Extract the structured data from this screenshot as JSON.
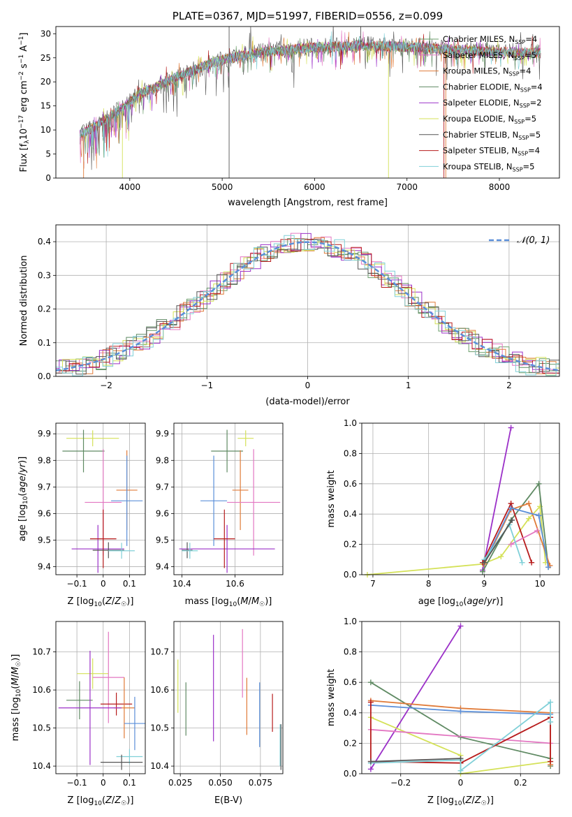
{
  "colors": {
    "chabrier_miles": "#6c9f6c",
    "salpeter_miles": "#e377c2",
    "kroupa_miles": "#e07b39",
    "chabrier_elodie": "#5f8a63",
    "salpeter_elodie": "#9b30c8",
    "kroupa_elodie": "#d4e157",
    "chabrier_stelib": "#555555",
    "salpeter_stelib": "#b71c1c",
    "kroupa_stelib": "#80d0d8",
    "blue_model": "#5b8fd9"
  },
  "chart_data": [
    {
      "id": "spectrum",
      "type": "line",
      "title": "PLATE=0367, MJD=51997, FIBERID=0556, z=0.099",
      "xlabel": "wavelength [Angstrom, rest frame]",
      "ylabel": "Flux [f_λ 10^-17 erg cm^-2 s^-1 A^-1]",
      "xlim": [
        3200,
        8650
      ],
      "ylim": [
        0,
        31.5
      ],
      "xticks": [
        4000,
        5000,
        6000,
        7000,
        8000
      ],
      "yticks": [
        0,
        5,
        10,
        15,
        20,
        25,
        30
      ],
      "grid": false,
      "legend_position": "top-right",
      "legend": [
        {
          "label": "Chabrier MILES, N",
          "sub": "SSP",
          "suffix": "=4",
          "color_key": "chabrier_miles"
        },
        {
          "label": "Salpeter MILES, N",
          "sub": "SSP",
          "suffix": "=5",
          "color_key": "salpeter_miles"
        },
        {
          "label": "Kroupa MILES, N",
          "sub": "SSP",
          "suffix": "=4",
          "color_key": "kroupa_miles"
        },
        {
          "label": "Chabrier ELODIE, N",
          "sub": "SSP",
          "suffix": "=4",
          "color_key": "chabrier_elodie"
        },
        {
          "label": "Salpeter ELODIE, N",
          "sub": "SSP",
          "suffix": "=2",
          "color_key": "salpeter_elodie"
        },
        {
          "label": "Kroupa ELODIE, N",
          "sub": "SSP",
          "suffix": "=5",
          "color_key": "kroupa_elodie"
        },
        {
          "label": "Chabrier STELIB, N",
          "sub": "SSP",
          "suffix": "=5",
          "color_key": "chabrier_stelib"
        },
        {
          "label": "Salpeter STELIB, N",
          "sub": "SSP",
          "suffix": "=4",
          "color_key": "salpeter_stelib"
        },
        {
          "label": "Kroupa STELIB, N",
          "sub": "SSP",
          "suffix": "=5",
          "color_key": "kroupa_stelib"
        }
      ],
      "continuum": [
        [
          3460,
          9
        ],
        [
          3600,
          10.5
        ],
        [
          3800,
          13
        ],
        [
          3950,
          15
        ],
        [
          4100,
          17.5
        ],
        [
          4300,
          19
        ],
        [
          4500,
          21
        ],
        [
          4700,
          22.5
        ],
        [
          4900,
          24
        ],
        [
          5100,
          25
        ],
        [
          5300,
          25.8
        ],
        [
          5500,
          26.3
        ],
        [
          5700,
          26.6
        ],
        [
          5900,
          27.1
        ],
        [
          6100,
          27.3
        ],
        [
          6300,
          27.3
        ],
        [
          6500,
          27.5
        ],
        [
          6700,
          27.5
        ],
        [
          6900,
          27.3
        ],
        [
          7100,
          27.2
        ],
        [
          7300,
          26.9
        ],
        [
          7500,
          26.7
        ],
        [
          7700,
          26.5
        ],
        [
          7900,
          26.3
        ],
        [
          8100,
          26.2
        ],
        [
          8300,
          26
        ],
        [
          8450,
          25.9
        ]
      ]
    },
    {
      "id": "residuals",
      "type": "line",
      "xlabel": "(data-model)/error",
      "ylabel": "Normed distribution",
      "xlim": [
        -2.5,
        2.5
      ],
      "ylim": [
        0,
        0.45
      ],
      "xticks": [
        -2,
        -1,
        0,
        1,
        2
      ],
      "yticks": [
        0.0,
        0.1,
        0.2,
        0.3,
        0.4
      ],
      "grid": true,
      "legend_position": "top-right",
      "reference_label": "𝒩(0, 1)"
    },
    {
      "id": "age_vs_Z",
      "type": "scatter",
      "xlabel": "Z [log10(Z/Z☉)]",
      "ylabel": "age [log10(age/yr)]",
      "xlim": [
        -0.18,
        0.16
      ],
      "ylim": [
        9.37,
        9.94
      ],
      "xticks": [
        -0.1,
        0.0,
        0.1
      ],
      "yticks": [
        9.4,
        9.5,
        9.6,
        9.7,
        9.8,
        9.9
      ],
      "grid": true,
      "points": [
        {
          "color_key": "kroupa_elodie",
          "x": -0.04,
          "xerr": 0.1,
          "y": 9.883,
          "yerr": 0.03
        },
        {
          "color_key": "chabrier_elodie",
          "x": -0.075,
          "xerr": 0.08,
          "y": 9.835,
          "yerr": 0.08
        },
        {
          "color_key": "kroupa_miles",
          "x": 0.09,
          "xerr": 0.04,
          "y": 9.688,
          "yerr": 0.15
        },
        {
          "color_key": "blue_model",
          "x": 0.09,
          "xerr": 0.06,
          "y": 9.648,
          "yerr": 0.17
        },
        {
          "color_key": "salpeter_miles",
          "x": 0.0,
          "xerr": 0.07,
          "y": 9.642,
          "yerr": 0.2
        },
        {
          "color_key": "salpeter_elodie",
          "x": -0.02,
          "xerr": 0.1,
          "y": 9.467,
          "yerr": 0.09
        },
        {
          "color_key": "salpeter_stelib",
          "x": 0.0,
          "xerr": 0.05,
          "y": 9.505,
          "yerr": 0.11
        },
        {
          "color_key": "chabrier_stelib",
          "x": 0.02,
          "xerr": 0.06,
          "y": 9.462,
          "yerr": 0.03
        },
        {
          "color_key": "kroupa_stelib",
          "x": 0.07,
          "xerr": 0.05,
          "y": 9.46,
          "yerr": 0.03
        }
      ]
    },
    {
      "id": "age_vs_mass",
      "type": "scatter",
      "xlabel": "mass [log10(M/M☉)]",
      "ylabel": "",
      "xlim": [
        10.37,
        10.78
      ],
      "ylim": [
        9.37,
        9.94
      ],
      "xticks": [
        10.4,
        10.6
      ],
      "yticks": [
        9.4,
        9.5,
        9.6,
        9.7,
        9.8,
        9.9
      ],
      "grid": true,
      "points": [
        {
          "color_key": "kroupa_elodie",
          "x": 10.64,
          "xerr": 0.03,
          "y": 9.883,
          "yerr": 0.03
        },
        {
          "color_key": "chabrier_elodie",
          "x": 10.57,
          "xerr": 0.06,
          "y": 9.835,
          "yerr": 0.08
        },
        {
          "color_key": "kroupa_miles",
          "x": 10.62,
          "xerr": 0.03,
          "y": 9.688,
          "yerr": 0.15
        },
        {
          "color_key": "blue_model",
          "x": 10.52,
          "xerr": 0.05,
          "y": 9.648,
          "yerr": 0.17
        },
        {
          "color_key": "salpeter_miles",
          "x": 10.67,
          "xerr": 0.1,
          "y": 9.642,
          "yerr": 0.2
        },
        {
          "color_key": "salpeter_elodie",
          "x": 10.57,
          "xerr": 0.18,
          "y": 9.467,
          "yerr": 0.09
        },
        {
          "color_key": "salpeter_stelib",
          "x": 10.56,
          "xerr": 0.04,
          "y": 9.505,
          "yerr": 0.11
        },
        {
          "color_key": "chabrier_stelib",
          "x": 10.42,
          "xerr": 0.02,
          "y": 9.462,
          "yerr": 0.03
        },
        {
          "color_key": "kroupa_stelib",
          "x": 10.43,
          "xerr": 0.03,
          "y": 9.46,
          "yerr": 0.03
        }
      ]
    },
    {
      "id": "weight_vs_age",
      "type": "line",
      "xlabel": "age [log10(age/yr)]",
      "ylabel": "mass weight",
      "xlim": [
        6.8,
        10.35
      ],
      "ylim": [
        0,
        1.0
      ],
      "xticks": [
        7,
        8,
        9,
        10
      ],
      "yticks": [
        0.0,
        0.2,
        0.4,
        0.6,
        0.8,
        1.0
      ],
      "grid": true,
      "series": [
        {
          "color_key": "salpeter_elodie",
          "x": [
            8.97,
            9.48
          ],
          "y": [
            0.03,
            0.97
          ]
        },
        {
          "color_key": "kroupa_elodie",
          "x": [
            6.9,
            8.97,
            9.3,
            9.8,
            10.0,
            10.1
          ],
          "y": [
            0.0,
            0.07,
            0.12,
            0.37,
            0.45,
            0.08
          ]
        },
        {
          "color_key": "chabrier_elodie",
          "x": [
            8.97,
            9.48,
            9.98,
            10.15
          ],
          "y": [
            0.02,
            0.36,
            0.6,
            0.05
          ]
        },
        {
          "color_key": "kroupa_miles",
          "x": [
            9.0,
            9.48,
            9.8,
            10.18
          ],
          "y": [
            0.07,
            0.43,
            0.47,
            0.06
          ]
        },
        {
          "color_key": "salpeter_stelib",
          "x": [
            8.97,
            9.48,
            9.85
          ],
          "y": [
            0.08,
            0.47,
            0.08
          ]
        },
        {
          "color_key": "blue_model",
          "x": [
            9.0,
            9.48,
            9.98,
            10.15
          ],
          "y": [
            0.08,
            0.44,
            0.39,
            0.05
          ]
        },
        {
          "color_key": "salpeter_miles",
          "x": [
            9.48,
            9.95
          ],
          "y": [
            0.2,
            0.29
          ]
        },
        {
          "color_key": "kroupa_stelib",
          "x": [
            9.0,
            9.45,
            9.68
          ],
          "y": [
            0.1,
            0.33,
            0.08
          ]
        },
        {
          "color_key": "chabrier_stelib",
          "x": [
            9.0,
            9.5
          ],
          "y": [
            0.08,
            0.36
          ]
        }
      ]
    },
    {
      "id": "mass_vs_Z",
      "type": "scatter",
      "xlabel": "Z [log10(Z/Z☉)]",
      "ylabel": "mass [log10(M/M☉)]",
      "xlim": [
        -0.18,
        0.16
      ],
      "ylim": [
        10.38,
        10.78
      ],
      "xticks": [
        -0.1,
        0.0,
        0.1
      ],
      "yticks": [
        10.4,
        10.5,
        10.6,
        10.7
      ],
      "grid": true,
      "points": [
        {
          "color_key": "kroupa_elodie",
          "x": -0.04,
          "xerr": 0.06,
          "y": 10.643,
          "yerr": 0.04
        },
        {
          "color_key": "salpeter_miles",
          "x": 0.02,
          "xerr": 0.06,
          "y": 10.633,
          "yerr": 0.12
        },
        {
          "color_key": "chabrier_elodie",
          "x": -0.09,
          "xerr": 0.05,
          "y": 10.573,
          "yerr": 0.05
        },
        {
          "color_key": "salpeter_stelib",
          "x": 0.05,
          "xerr": 0.06,
          "y": 10.563,
          "yerr": 0.03
        },
        {
          "color_key": "kroupa_miles",
          "x": 0.08,
          "xerr": 0.04,
          "y": 10.553,
          "yerr": 0.08
        },
        {
          "color_key": "salpeter_elodie",
          "x": -0.05,
          "xerr": 0.12,
          "y": 10.553,
          "yerr": 0.15
        },
        {
          "color_key": "blue_model",
          "x": 0.12,
          "xerr": 0.04,
          "y": 10.512,
          "yerr": 0.07
        },
        {
          "color_key": "kroupa_stelib",
          "x": 0.1,
          "xerr": 0.05,
          "y": 10.425,
          "yerr": 0.02
        },
        {
          "color_key": "chabrier_stelib",
          "x": 0.07,
          "xerr": 0.08,
          "y": 10.41,
          "yerr": 0.02
        }
      ]
    },
    {
      "id": "mass_vs_ebv",
      "type": "scatter",
      "xlabel": "E(B-V)",
      "ylabel": "",
      "xlim": [
        0.021,
        0.089
      ],
      "ylim": [
        10.38,
        10.78
      ],
      "xticks": [
        0.025,
        0.05,
        0.075
      ],
      "xtick_labels": [
        "0.025",
        "0.050",
        "0.075"
      ],
      "yticks": [
        10.4,
        10.5,
        10.6,
        10.7
      ],
      "grid": true,
      "points": [
        {
          "color_key": "kroupa_elodie",
          "x": 0.0235,
          "y": 10.61,
          "yerr": 0.07
        },
        {
          "color_key": "chabrier_elodie",
          "x": 0.0285,
          "y": 10.55,
          "yerr": 0.07
        },
        {
          "color_key": "salpeter_elodie",
          "x": 0.0457,
          "y": 10.605,
          "yerr": 0.14
        },
        {
          "color_key": "salpeter_miles",
          "x": 0.0638,
          "y": 10.67,
          "yerr": 0.09
        },
        {
          "color_key": "kroupa_miles",
          "x": 0.0665,
          "y": 10.557,
          "yerr": 0.075
        },
        {
          "color_key": "blue_model",
          "x": 0.0745,
          "y": 10.535,
          "yerr": 0.085
        },
        {
          "color_key": "salpeter_stelib",
          "x": 0.0825,
          "y": 10.54,
          "yerr": 0.05
        },
        {
          "color_key": "kroupa_stelib",
          "x": 0.0873,
          "y": 10.455,
          "yerr": 0.055
        },
        {
          "color_key": "chabrier_stelib",
          "x": 0.0878,
          "y": 10.45,
          "yerr": 0.06
        }
      ]
    },
    {
      "id": "weight_vs_Z",
      "type": "line",
      "xlabel": "Z [log10(Z/Z☉)]",
      "ylabel": "mass weight",
      "xlim": [
        -0.33,
        0.33
      ],
      "ylim": [
        0,
        1.0
      ],
      "xticks": [
        -0.2,
        0.0,
        0.2
      ],
      "yticks": [
        0.0,
        0.2,
        0.4,
        0.6,
        0.8,
        1.0
      ],
      "grid": true,
      "series": [
        {
          "color_key": "salpeter_elodie",
          "x": [
            -0.3,
            0.0
          ],
          "y": [
            0.03,
            0.97
          ]
        },
        {
          "color_key": "chabrier_elodie",
          "x": [
            -0.3,
            0.0,
            0.3,
            0.3
          ],
          "y": [
            0.6,
            0.24,
            0.1,
            0.05
          ]
        },
        {
          "color_key": "kroupa_miles",
          "x": [
            -0.3,
            0.0,
            0.3,
            0.3
          ],
          "y": [
            0.48,
            0.43,
            0.4,
            0.06
          ]
        },
        {
          "color_key": "blue_model",
          "x": [
            -0.3,
            0.0,
            0.3
          ],
          "y": [
            0.45,
            0.41,
            0.39
          ]
        },
        {
          "color_key": "kroupa_elodie",
          "x": [
            -0.3,
            0.0,
            0.0,
            0.3
          ],
          "y": [
            0.37,
            0.12,
            0.0,
            0.08
          ]
        },
        {
          "color_key": "salpeter_miles",
          "x": [
            -0.3,
            0.3
          ],
          "y": [
            0.29,
            0.2
          ]
        },
        {
          "color_key": "salpeter_stelib",
          "x": [
            -0.3,
            -0.3,
            0.0,
            0.3,
            0.3
          ],
          "y": [
            0.47,
            0.08,
            0.07,
            0.37,
            0.08
          ]
        },
        {
          "color_key": "kroupa_stelib",
          "x": [
            -0.3,
            0.0,
            0.0,
            0.3,
            0.3
          ],
          "y": [
            0.07,
            0.09,
            0.02,
            0.47,
            0.34
          ]
        },
        {
          "color_key": "chabrier_stelib",
          "x": [
            -0.3,
            0.0
          ],
          "y": [
            0.08,
            0.1
          ]
        }
      ]
    }
  ]
}
